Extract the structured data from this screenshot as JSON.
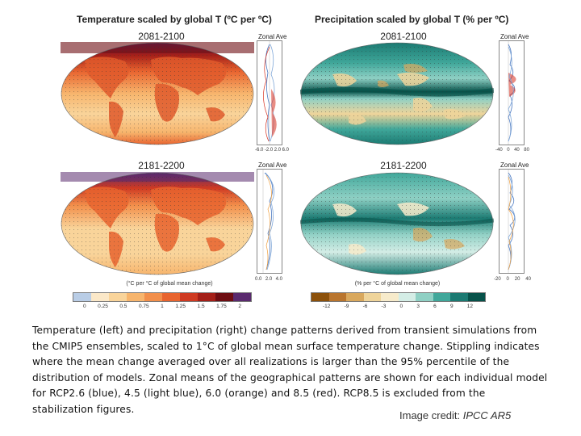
{
  "figure": {
    "temperature": {
      "title": "Temperature scaled by global T (ºC per ºC)",
      "zonal_label": "Zonal Ave",
      "period_top": "2081-2100",
      "period_bottom": "2181-2200",
      "zonal_axis_top": [
        "-6.0",
        "-2.0",
        "2.0",
        "6.0"
      ],
      "zonal_axis_bottom": [
        "0.0",
        "2.0",
        "4.0"
      ],
      "colorbar_ticks": [
        "0",
        "0.25",
        "0.5",
        "0.75",
        "1",
        "1.25",
        "1.5",
        "1.75",
        "2"
      ],
      "colorbar_label": "(°C per °C of global mean change)",
      "colors": [
        "#b9cde6",
        "#fbe8c8",
        "#f9d49a",
        "#f7b56d",
        "#f28f4b",
        "#e8642f",
        "#cf3a22",
        "#a41f18",
        "#6e0d12",
        "#5a2a6e"
      ]
    },
    "precipitation": {
      "title": "Precipitation scaled by global T (% per ºC)",
      "zonal_label": "Zonal Ave",
      "period_top": "2081-2100",
      "period_bottom": "2181-2200",
      "zonal_axis_top": [
        "-40",
        "0",
        "40",
        "80"
      ],
      "zonal_axis_bottom": [
        "-20",
        "0",
        "20",
        "40"
      ],
      "colorbar_ticks": [
        "-12",
        "-9",
        "-6",
        "-3",
        "0",
        "3",
        "6",
        "9",
        "12"
      ],
      "colorbar_label": "(% per °C of global mean change)",
      "colors": [
        "#8c510a",
        "#b9752e",
        "#d9a85d",
        "#efd49a",
        "#f7ebcb",
        "#d4ede6",
        "#8fd0c4",
        "#40a79a",
        "#1b7a72",
        "#07524a"
      ]
    }
  },
  "caption": {
    "text": "Temperature (left) and precipitation (right) change patterns derived from transient simulations from the CMIP5 ensembles, scaled to 1°C of global mean surface temperature change. Stippling indicates where the mean change averaged over all realizations is larger than the 95% percentile of the distribution of models. Zonal means of the geographical patterns are shown for each individual model for RCP2.6 (blue), 4.5 (light blue), 6.0 (orange) and 8.5 (red). RCP8.5 is excluded from the stabilization figures.",
    "credit_prefix": "Image credit: ",
    "credit_source": "IPCC AR5"
  }
}
